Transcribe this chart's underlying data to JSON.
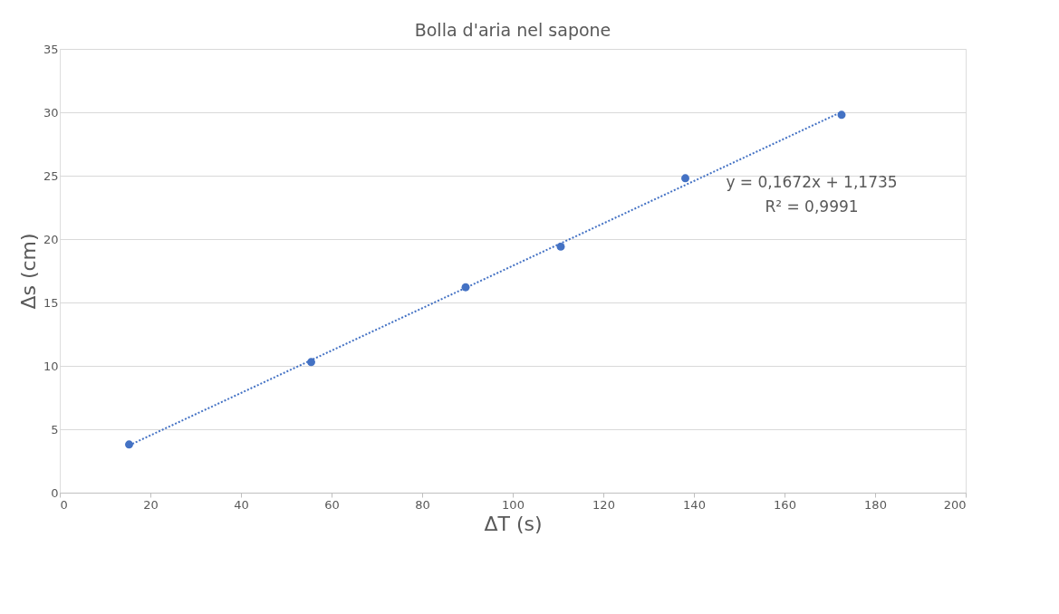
{
  "chart_data": {
    "type": "scatter",
    "title": "Bolla d'aria nel sapone",
    "xlabel": "ΔT (s)",
    "ylabel": "Δs (cm)",
    "series": [
      {
        "type": "scatter",
        "color": "#4472c4",
        "marker": "circle",
        "x": [
          15.3,
          55.5,
          89.6,
          110.6,
          138.1,
          172.6
        ],
        "values": [
          3.8,
          10.3,
          16.2,
          19.4,
          24.8,
          29.8
        ]
      },
      {
        "type": "line",
        "color": "#4472c4",
        "line_style": "dotted",
        "x": [
          15.3,
          172.6
        ],
        "values": [
          3.73,
          30.03
        ]
      }
    ],
    "annotations": [
      "y = 0,1672x + 1,1735",
      "R² = 0,9991"
    ],
    "xlim": [
      0,
      200
    ],
    "xticks": [
      0,
      20,
      40,
      60,
      80,
      100,
      120,
      140,
      160,
      180,
      200
    ],
    "ylim": [
      0,
      35
    ],
    "yticks": [
      0,
      5,
      10,
      15,
      20,
      25,
      30,
      35
    ],
    "grid": "y"
  }
}
